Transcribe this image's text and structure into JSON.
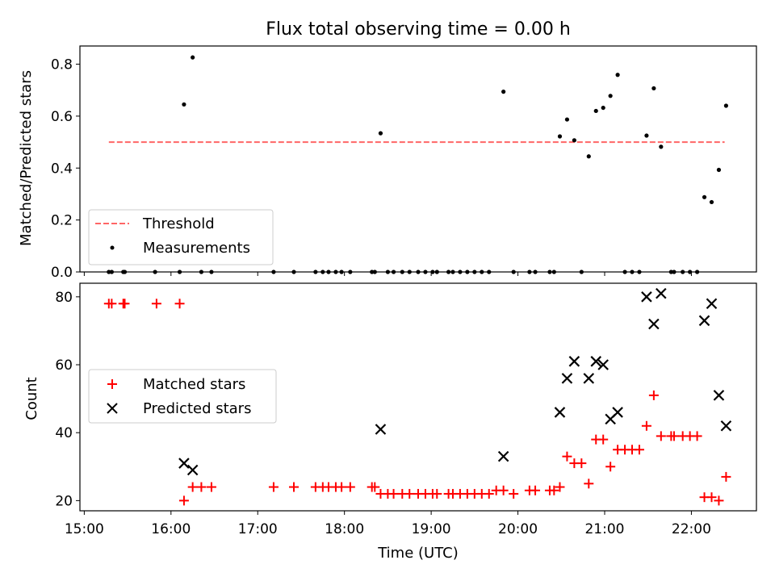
{
  "title": "Flux total observing time = 0.00 h",
  "colors": {
    "threshold": "#ff6666",
    "measurements": "#000000",
    "matched": "#ff0000",
    "predicted": "#000000"
  },
  "chart_data": [
    {
      "type": "scatter",
      "ylabel": "Matched/Predicted stars",
      "ylim": [
        0,
        0.87
      ],
      "yticks": [
        0.0,
        0.2,
        0.4,
        0.6,
        0.8
      ],
      "ytick_labels": [
        "0.0",
        "0.2",
        "0.4",
        "0.6",
        "0.8"
      ],
      "xlim": [
        "14:57",
        "22:45"
      ],
      "legend": {
        "position": "lower-left",
        "entries": [
          "Threshold",
          "Measurements"
        ]
      },
      "threshold": {
        "name": "Threshold",
        "value": 0.5,
        "x_range": [
          "15:17",
          "22:23"
        ]
      },
      "series": [
        {
          "name": "Measurements",
          "points": [
            {
              "x": "15:17",
              "y": 0
            },
            {
              "x": "15:19",
              "y": 0
            },
            {
              "x": "15:27",
              "y": 0
            },
            {
              "x": "15:28",
              "y": 0
            },
            {
              "x": "15:49",
              "y": 0
            },
            {
              "x": "16:06",
              "y": 0
            },
            {
              "x": "16:09",
              "y": 0.645
            },
            {
              "x": "16:15",
              "y": 0.826
            },
            {
              "x": "16:21",
              "y": 0
            },
            {
              "x": "16:28",
              "y": 0
            },
            {
              "x": "17:11",
              "y": 0
            },
            {
              "x": "17:25",
              "y": 0
            },
            {
              "x": "17:40",
              "y": 0
            },
            {
              "x": "17:45",
              "y": 0
            },
            {
              "x": "17:49",
              "y": 0
            },
            {
              "x": "17:54",
              "y": 0
            },
            {
              "x": "17:58",
              "y": 0
            },
            {
              "x": "18:04",
              "y": 0
            },
            {
              "x": "18:19",
              "y": 0
            },
            {
              "x": "18:21",
              "y": 0
            },
            {
              "x": "18:25",
              "y": 0.534
            },
            {
              "x": "18:30",
              "y": 0
            },
            {
              "x": "18:34",
              "y": 0
            },
            {
              "x": "18:40",
              "y": 0
            },
            {
              "x": "18:45",
              "y": 0
            },
            {
              "x": "18:51",
              "y": 0
            },
            {
              "x": "18:56",
              "y": 0
            },
            {
              "x": "19:01",
              "y": 0
            },
            {
              "x": "19:04",
              "y": 0
            },
            {
              "x": "19:12",
              "y": 0
            },
            {
              "x": "19:15",
              "y": 0
            },
            {
              "x": "19:20",
              "y": 0
            },
            {
              "x": "19:25",
              "y": 0
            },
            {
              "x": "19:30",
              "y": 0
            },
            {
              "x": "19:35",
              "y": 0
            },
            {
              "x": "19:40",
              "y": 0
            },
            {
              "x": "19:50",
              "y": 0.694
            },
            {
              "x": "19:57",
              "y": 0
            },
            {
              "x": "20:08",
              "y": 0
            },
            {
              "x": "20:12",
              "y": 0
            },
            {
              "x": "20:22",
              "y": 0
            },
            {
              "x": "20:25",
              "y": 0
            },
            {
              "x": "20:29",
              "y": 0.522
            },
            {
              "x": "20:34",
              "y": 0.587
            },
            {
              "x": "20:39",
              "y": 0.507
            },
            {
              "x": "20:44",
              "y": 0
            },
            {
              "x": "20:49",
              "y": 0.445
            },
            {
              "x": "20:54",
              "y": 0.62
            },
            {
              "x": "20:59",
              "y": 0.632
            },
            {
              "x": "21:04",
              "y": 0.678
            },
            {
              "x": "21:09",
              "y": 0.759
            },
            {
              "x": "21:14",
              "y": 0
            },
            {
              "x": "21:19",
              "y": 0
            },
            {
              "x": "21:24",
              "y": 0
            },
            {
              "x": "21:29",
              "y": 0.525
            },
            {
              "x": "21:34",
              "y": 0.707
            },
            {
              "x": "21:39",
              "y": 0.482
            },
            {
              "x": "21:46",
              "y": 0
            },
            {
              "x": "21:48",
              "y": 0
            },
            {
              "x": "21:54",
              "y": 0
            },
            {
              "x": "21:59",
              "y": 0
            },
            {
              "x": "22:04",
              "y": 0
            },
            {
              "x": "22:09",
              "y": 0.288
            },
            {
              "x": "22:14",
              "y": 0.269
            },
            {
              "x": "22:19",
              "y": 0.393
            },
            {
              "x": "22:24",
              "y": 0.64
            }
          ]
        }
      ]
    },
    {
      "type": "scatter",
      "xlabel": "Time (UTC)",
      "ylabel": "Count",
      "ylim": [
        17,
        84
      ],
      "yticks": [
        20,
        40,
        60,
        80
      ],
      "ytick_labels": [
        "20",
        "40",
        "60",
        "80"
      ],
      "xlim": [
        "14:57",
        "22:45"
      ],
      "xticks": [
        "15:00",
        "16:00",
        "17:00",
        "18:00",
        "19:00",
        "20:00",
        "21:00",
        "22:00"
      ],
      "xtick_labels": [
        "15:00",
        "16:00",
        "17:00",
        "18:00",
        "19:00",
        "20:00",
        "21:00",
        "22:00"
      ],
      "legend": {
        "position": "center-left",
        "entries": [
          "Matched stars",
          "Predicted stars"
        ]
      },
      "series": [
        {
          "name": "Matched stars",
          "marker": "+",
          "points": [
            {
              "x": "15:17",
              "y": 78
            },
            {
              "x": "15:19",
              "y": 78
            },
            {
              "x": "15:27",
              "y": 78
            },
            {
              "x": "15:28",
              "y": 78
            },
            {
              "x": "15:50",
              "y": 78
            },
            {
              "x": "16:06",
              "y": 78
            },
            {
              "x": "16:09",
              "y": 20
            },
            {
              "x": "16:15",
              "y": 24
            },
            {
              "x": "16:21",
              "y": 24
            },
            {
              "x": "16:28",
              "y": 24
            },
            {
              "x": "17:11",
              "y": 24
            },
            {
              "x": "17:25",
              "y": 24
            },
            {
              "x": "17:40",
              "y": 24
            },
            {
              "x": "17:45",
              "y": 24
            },
            {
              "x": "17:49",
              "y": 24
            },
            {
              "x": "17:54",
              "y": 24
            },
            {
              "x": "17:58",
              "y": 24
            },
            {
              "x": "18:04",
              "y": 24
            },
            {
              "x": "18:19",
              "y": 24
            },
            {
              "x": "18:21",
              "y": 24
            },
            {
              "x": "18:25",
              "y": 22
            },
            {
              "x": "18:30",
              "y": 22
            },
            {
              "x": "18:34",
              "y": 22
            },
            {
              "x": "18:40",
              "y": 22
            },
            {
              "x": "18:45",
              "y": 22
            },
            {
              "x": "18:51",
              "y": 22
            },
            {
              "x": "18:56",
              "y": 22
            },
            {
              "x": "19:01",
              "y": 22
            },
            {
              "x": "19:04",
              "y": 22
            },
            {
              "x": "19:12",
              "y": 22
            },
            {
              "x": "19:15",
              "y": 22
            },
            {
              "x": "19:20",
              "y": 22
            },
            {
              "x": "19:25",
              "y": 22
            },
            {
              "x": "19:30",
              "y": 22
            },
            {
              "x": "19:35",
              "y": 22
            },
            {
              "x": "19:40",
              "y": 22
            },
            {
              "x": "19:45",
              "y": 23
            },
            {
              "x": "19:50",
              "y": 23
            },
            {
              "x": "19:57",
              "y": 22
            },
            {
              "x": "20:08",
              "y": 23
            },
            {
              "x": "20:12",
              "y": 23
            },
            {
              "x": "20:22",
              "y": 23
            },
            {
              "x": "20:25",
              "y": 23
            },
            {
              "x": "20:29",
              "y": 24
            },
            {
              "x": "20:34",
              "y": 33
            },
            {
              "x": "20:39",
              "y": 31
            },
            {
              "x": "20:44",
              "y": 31
            },
            {
              "x": "20:49",
              "y": 25
            },
            {
              "x": "20:54",
              "y": 38
            },
            {
              "x": "20:59",
              "y": 38
            },
            {
              "x": "21:04",
              "y": 30
            },
            {
              "x": "21:09",
              "y": 35
            },
            {
              "x": "21:14",
              "y": 35
            },
            {
              "x": "21:19",
              "y": 35
            },
            {
              "x": "21:24",
              "y": 35
            },
            {
              "x": "21:29",
              "y": 42
            },
            {
              "x": "21:34",
              "y": 51
            },
            {
              "x": "21:39",
              "y": 39
            },
            {
              "x": "21:46",
              "y": 39
            },
            {
              "x": "21:48",
              "y": 39
            },
            {
              "x": "21:54",
              "y": 39
            },
            {
              "x": "21:59",
              "y": 39
            },
            {
              "x": "22:04",
              "y": 39
            },
            {
              "x": "22:09",
              "y": 21
            },
            {
              "x": "22:14",
              "y": 21
            },
            {
              "x": "22:19",
              "y": 20
            },
            {
              "x": "22:24",
              "y": 27
            }
          ]
        },
        {
          "name": "Predicted stars",
          "marker": "x",
          "points": [
            {
              "x": "16:09",
              "y": 31
            },
            {
              "x": "16:15",
              "y": 29
            },
            {
              "x": "18:25",
              "y": 41
            },
            {
              "x": "19:50",
              "y": 33
            },
            {
              "x": "20:29",
              "y": 46
            },
            {
              "x": "20:34",
              "y": 56
            },
            {
              "x": "20:39",
              "y": 61
            },
            {
              "x": "20:49",
              "y": 56
            },
            {
              "x": "20:54",
              "y": 61
            },
            {
              "x": "20:59",
              "y": 60
            },
            {
              "x": "21:04",
              "y": 44
            },
            {
              "x": "21:09",
              "y": 46
            },
            {
              "x": "21:29",
              "y": 80
            },
            {
              "x": "21:34",
              "y": 72
            },
            {
              "x": "21:39",
              "y": 81
            },
            {
              "x": "22:09",
              "y": 73
            },
            {
              "x": "22:14",
              "y": 78
            },
            {
              "x": "22:19",
              "y": 51
            },
            {
              "x": "22:24",
              "y": 42
            }
          ]
        }
      ]
    }
  ]
}
